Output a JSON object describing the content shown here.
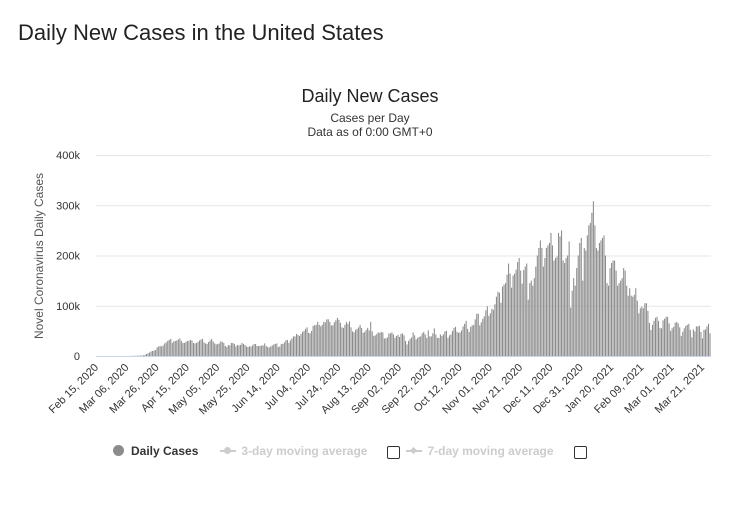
{
  "page": {
    "title": "Daily New Cases in the United States"
  },
  "chart_data": {
    "type": "bar",
    "title": "Daily New Cases",
    "subtitle": "Cases per Day",
    "subtitle2": "Data as of 0:00 GMT+0",
    "ylabel": "Novel Coronavirus Daily Cases",
    "xlabel": "",
    "ylim": [
      0,
      400000
    ],
    "yticks": [
      "0",
      "100k",
      "200k",
      "300k",
      "400k"
    ],
    "x_start": "2020-02-15",
    "xticks": [
      "Feb 15, 2020",
      "Mar 06, 2020",
      "Mar 26, 2020",
      "Apr 15, 2020",
      "May 05, 2020",
      "May 25, 2020",
      "Jun 14, 2020",
      "Jul 04, 2020",
      "Jul 24, 2020",
      "Aug 13, 2020",
      "Sep 02, 2020",
      "Sep 22, 2020",
      "Oct 12, 2020",
      "Nov 01, 2020",
      "Nov 21, 2020",
      "Dec 11, 2020",
      "Dec 31, 2020",
      "Jan 20, 2021",
      "Feb 09, 2021",
      "Mar 01, 2021",
      "Mar 21, 2021"
    ],
    "grid": true,
    "bar_color": "#8c8c8c",
    "legend_placement": "bottom",
    "legend": [
      {
        "name": "Daily Cases",
        "enabled": true
      },
      {
        "name": "3-day moving average",
        "enabled": false
      },
      {
        "name": "7-day moving average",
        "enabled": false
      }
    ],
    "values": [
      0,
      0,
      0,
      0,
      0,
      0,
      0,
      0,
      0,
      0,
      0,
      0,
      0,
      0,
      0,
      0,
      0,
      0,
      0,
      0,
      0,
      100,
      100,
      200,
      300,
      400,
      500,
      600,
      700,
      800,
      1000,
      1500,
      2500,
      4000,
      5500,
      7000,
      9000,
      10000,
      11000,
      12000,
      17000,
      19000,
      20000,
      19000,
      21000,
      25000,
      27000,
      30000,
      32000,
      34000,
      26000,
      29000,
      30000,
      31000,
      33000,
      35000,
      30000,
      26000,
      26000,
      28000,
      30000,
      30000,
      32000,
      31000,
      26000,
      25000,
      26000,
      28000,
      31000,
      33000,
      34000,
      27000,
      25000,
      24000,
      28000,
      31000,
      34000,
      29000,
      25000,
      23000,
      24000,
      25000,
      29000,
      28000,
      26000,
      20000,
      18000,
      22000,
      21000,
      26000,
      26000,
      24000,
      19000,
      22000,
      21000,
      22000,
      26000,
      24000,
      22000,
      19000,
      18000,
      19000,
      19000,
      21000,
      24000,
      24000,
      20000,
      20000,
      20000,
      21000,
      21000,
      25000,
      20000,
      18000,
      17000,
      19000,
      21000,
      23000,
      24000,
      25000,
      18000,
      19000,
      24000,
      24000,
      27000,
      31000,
      32000,
      26000,
      31000,
      35000,
      39000,
      39000,
      44000,
      42000,
      40000,
      44000,
      48000,
      50000,
      54000,
      57000,
      46000,
      45000,
      50000,
      60000,
      61000,
      62000,
      68000,
      62000,
      59000,
      62000,
      68000,
      67000,
      73000,
      73000,
      68000,
      61000,
      61000,
      67000,
      71000,
      76000,
      72000,
      66000,
      57000,
      56000,
      62000,
      68000,
      64000,
      69000,
      57000,
      49000,
      47000,
      52000,
      54000,
      57000,
      62000,
      56000,
      46000,
      48000,
      52000,
      56000,
      51000,
      68000,
      49000,
      40000,
      41000,
      44000,
      47000,
      46000,
      48000,
      47000,
      35000,
      35000,
      37000,
      45000,
      45000,
      47000,
      43000,
      36000,
      40000,
      42000,
      38000,
      44000,
      45000,
      41000,
      30000,
      23000,
      30000,
      34000,
      37000,
      47000,
      41000,
      33000,
      36000,
      38000,
      39000,
      45000,
      48000,
      43000,
      36000,
      51000,
      39000,
      39000,
      45000,
      55000,
      43000,
      36000,
      36000,
      43000,
      40000,
      43000,
      49000,
      50000,
      36000,
      41000,
      43000,
      50000,
      56000,
      58000,
      48000,
      46000,
      47000,
      51000,
      59000,
      64000,
      70000,
      54000,
      48000,
      58000,
      61000,
      62000,
      73000,
      84000,
      84000,
      61000,
      67000,
      74000,
      79000,
      91000,
      99000,
      80000,
      85000,
      94000,
      92000,
      103000,
      118000,
      128000,
      126000,
      106000,
      138000,
      142000,
      145000,
      162000,
      184000,
      164000,
      136000,
      160000,
      164000,
      172000,
      187000,
      195000,
      170000,
      144000,
      171000,
      178000,
      184000,
      112000,
      145000,
      150000,
      140000,
      155000,
      178000,
      200000,
      215000,
      230000,
      215000,
      178000,
      195000,
      215000,
      220000,
      225000,
      245000,
      220000,
      190000,
      195000,
      198000,
      245000,
      238000,
      250000,
      190000,
      185000,
      195000,
      200000,
      228000,
      96000,
      130000,
      155000,
      140000,
      175000,
      200000,
      225000,
      235000,
      150000,
      215000,
      210000,
      240000,
      260000,
      265000,
      285000,
      308000,
      260000,
      215000,
      210000,
      225000,
      230000,
      235000,
      240000,
      200000,
      145000,
      140000,
      175000,
      185000,
      190000,
      190000,
      170000,
      140000,
      145000,
      150000,
      155000,
      175000,
      170000,
      140000,
      120000,
      135000,
      120000,
      118000,
      122000,
      135000,
      110000,
      85000,
      95000,
      98000,
      95000,
      105000,
      105000,
      90000,
      66000,
      52000,
      62000,
      70000,
      76000,
      78000,
      70000,
      56000,
      55000,
      71000,
      74000,
      78000,
      78000,
      65000,
      50000,
      55000,
      58000,
      66000,
      68000,
      65000,
      57000,
      40000,
      48000,
      55000,
      60000,
      62000,
      64000,
      52000,
      37000,
      53000,
      49000,
      59000,
      59000,
      60000,
      48000,
      35000,
      52000,
      53000,
      59000,
      64000,
      45000
    ]
  }
}
